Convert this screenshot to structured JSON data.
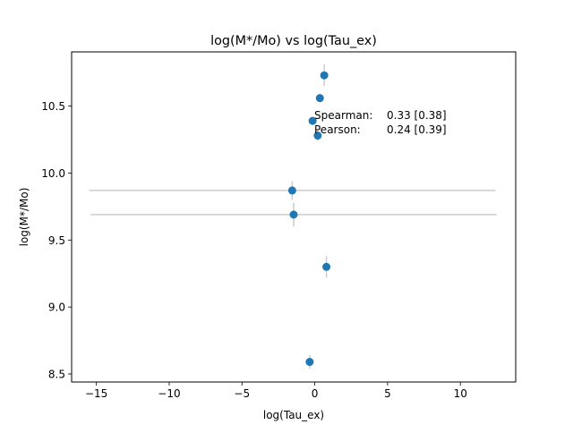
{
  "chart_data": {
    "type": "scatter",
    "title": "log(M*/Mo) vs log(Tau_ex)",
    "xlabel": "log(Tau_ex)",
    "ylabel": "log(M*/Mo)",
    "xlim": [
      -16.7,
      13.8
    ],
    "ylim": [
      8.44,
      10.905
    ],
    "xticks": [
      -15,
      -10,
      -5,
      0,
      5,
      10
    ],
    "yticks": [
      8.5,
      9.0,
      9.5,
      10.0,
      10.5
    ],
    "xtick_labels": [
      "−15",
      "−10",
      "−5",
      "0",
      "5",
      "10"
    ],
    "ytick_labels": [
      "8.5",
      "9.0",
      "9.5",
      "10.0",
      "10.5"
    ],
    "grid": false,
    "marker_color": "#1f77b4",
    "errorbar_color": "#cccccc",
    "points": [
      {
        "x": 0.65,
        "y": 10.73,
        "xerr": 0.1,
        "yerr": 0.08
      },
      {
        "x": 0.35,
        "y": 10.56,
        "xerr": 0.1,
        "yerr": 0.03
      },
      {
        "x": -0.15,
        "y": 10.39,
        "xerr": 0.1,
        "yerr": 0.03
      },
      {
        "x": 0.2,
        "y": 10.28,
        "xerr": 0.1,
        "yerr": 0.04
      },
      {
        "x": -1.55,
        "y": 9.87,
        "xerr": 13.95,
        "yerr": 0.07
      },
      {
        "x": -1.45,
        "y": 9.69,
        "xerr": 13.95,
        "yerr": 0.09
      },
      {
        "x": 0.8,
        "y": 9.3,
        "xerr": 0.1,
        "yerr": 0.08
      },
      {
        "x": -0.35,
        "y": 8.59,
        "xerr": 0.1,
        "yerr": 0.05
      }
    ],
    "annotations": [
      {
        "label": "Spearman:",
        "value": "0.33 [0.38]"
      },
      {
        "label": "Pearson:",
        "value": "0.24 [0.39]"
      }
    ]
  }
}
